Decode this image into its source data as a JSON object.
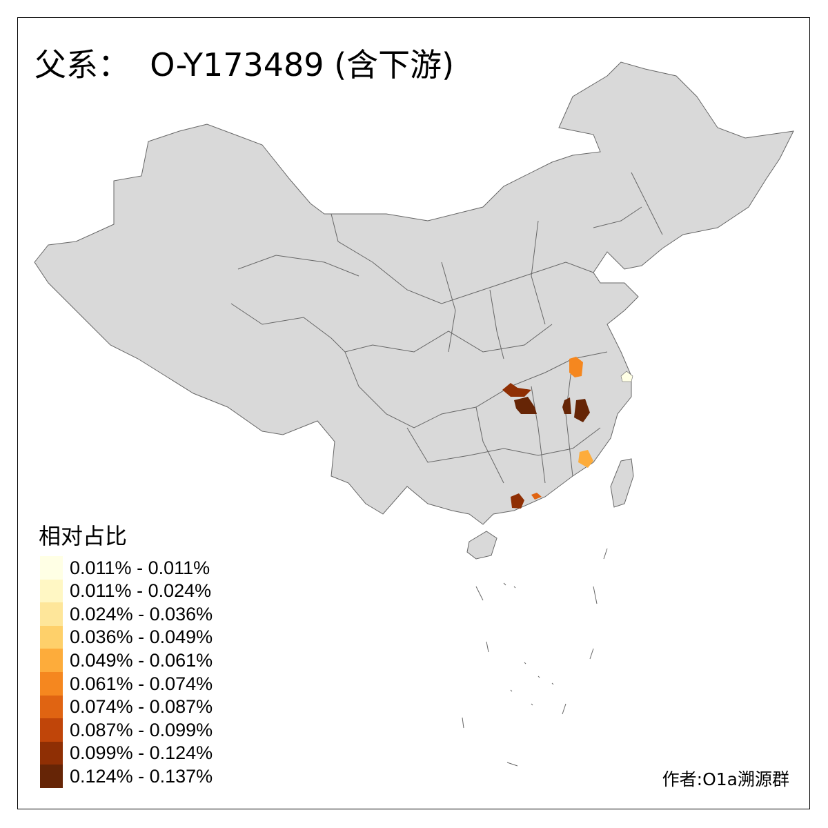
{
  "title": "父系：  O-Y173489 (含下游)",
  "legend": {
    "title": "相对占比",
    "items": [
      {
        "label": "0.011% - 0.011%",
        "color": "#FFFFE5"
      },
      {
        "label": "0.011% - 0.024%",
        "color": "#FFF7C4"
      },
      {
        "label": "0.024% - 0.036%",
        "color": "#FEE69A"
      },
      {
        "label": "0.036% - 0.049%",
        "color": "#FED06A"
      },
      {
        "label": "0.049% - 0.061%",
        "color": "#FDAC3B"
      },
      {
        "label": "0.061% - 0.074%",
        "color": "#F5871F"
      },
      {
        "label": "0.074% - 0.087%",
        "color": "#E06412"
      },
      {
        "label": "0.087% - 0.099%",
        "color": "#C04509"
      },
      {
        "label": "0.099% - 0.124%",
        "color": "#8F2F04"
      },
      {
        "label": "0.124% - 0.137%",
        "color": "#662506"
      }
    ]
  },
  "credit": "作者:O1a溯源群",
  "colors": {
    "land": "#D9D9D9",
    "border": "#666666"
  },
  "highlighted_regions": [
    {
      "color": "#F5871F",
      "area": "Anhui central"
    },
    {
      "color": "#FFFFE5",
      "area": "Shanghai"
    },
    {
      "color": "#8F2F04",
      "area": "Hubei west"
    },
    {
      "color": "#662506",
      "area": "Hubei/Hunan north"
    },
    {
      "color": "#662506",
      "area": "Jiangxi north"
    },
    {
      "color": "#FDAC3B",
      "area": "Fujian south"
    },
    {
      "color": "#8F2F04",
      "area": "Guangdong west"
    },
    {
      "color": "#E06412",
      "area": "Guangdong Pearl River"
    }
  ]
}
